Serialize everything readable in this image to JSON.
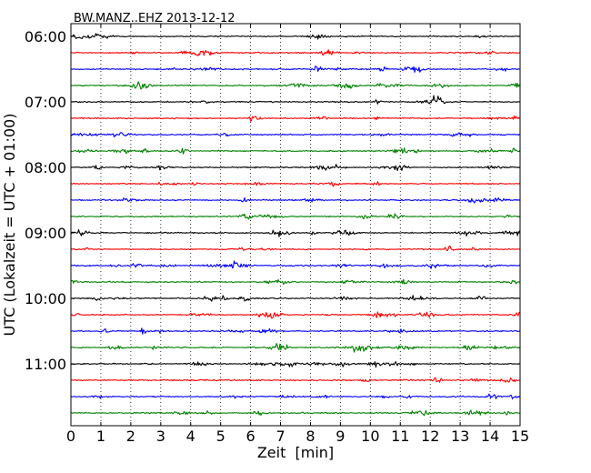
{
  "chart_data": {
    "type": "line",
    "title": "BW.MANZ..EHZ 2013-12-12",
    "xlabel": "Zeit  [min]",
    "ylabel": "UTC (Lokalzeit = UTC + 01:00)",
    "xlim": [
      0,
      15
    ],
    "x_ticks": [
      0,
      1,
      2,
      3,
      4,
      5,
      6,
      7,
      8,
      9,
      10,
      11,
      12,
      13,
      14,
      15
    ],
    "x_tick_labels": [
      "0",
      "1",
      "2",
      "3",
      "4",
      "5",
      "6",
      "7",
      "8",
      "9",
      "10",
      "11",
      "12",
      "13",
      "14",
      "15"
    ],
    "y_tick_labels": [
      "06:00",
      "07:00",
      "08:00",
      "09:00",
      "10:00",
      "11:00"
    ],
    "grid": "vertical-dotted",
    "traces_per_hour": 4,
    "trace_colors": [
      "#000000",
      "#ff0000",
      "#0000ff",
      "#008000"
    ],
    "rows": [
      {
        "start": "06:00",
        "color": "#000000"
      },
      {
        "start": "06:15",
        "color": "#ff0000"
      },
      {
        "start": "06:30",
        "color": "#0000ff"
      },
      {
        "start": "06:45",
        "color": "#008000"
      },
      {
        "start": "07:00",
        "color": "#000000"
      },
      {
        "start": "07:15",
        "color": "#ff0000"
      },
      {
        "start": "07:30",
        "color": "#0000ff"
      },
      {
        "start": "07:45",
        "color": "#008000"
      },
      {
        "start": "08:00",
        "color": "#000000"
      },
      {
        "start": "08:15",
        "color": "#ff0000"
      },
      {
        "start": "08:30",
        "color": "#0000ff"
      },
      {
        "start": "08:45",
        "color": "#008000"
      },
      {
        "start": "09:00",
        "color": "#000000"
      },
      {
        "start": "09:15",
        "color": "#ff0000"
      },
      {
        "start": "09:30",
        "color": "#0000ff"
      },
      {
        "start": "09:45",
        "color": "#008000"
      },
      {
        "start": "10:00",
        "color": "#000000"
      },
      {
        "start": "10:15",
        "color": "#ff0000"
      },
      {
        "start": "10:30",
        "color": "#0000ff"
      },
      {
        "start": "10:45",
        "color": "#008000"
      },
      {
        "start": "11:00",
        "color": "#000000"
      },
      {
        "start": "11:15",
        "color": "#ff0000"
      },
      {
        "start": "11:30",
        "color": "#0000ff"
      },
      {
        "start": "11:45",
        "color": "#008000"
      }
    ]
  }
}
